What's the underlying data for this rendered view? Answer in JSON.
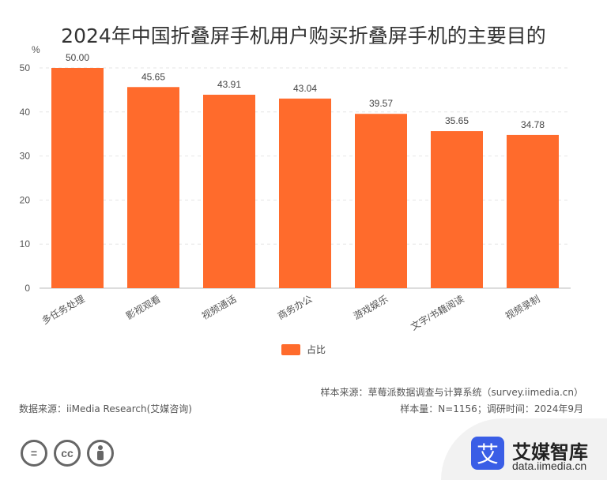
{
  "title": "2024年中国折叠屏手机用户购买折叠屏手机的主要目的",
  "chart_data": {
    "type": "bar",
    "title": "2024年中国折叠屏手机用户购买折叠屏手机的主要目的",
    "ylabel": "%",
    "categories": [
      "多任务处理",
      "影视观看",
      "视频通话",
      "商务办公",
      "游戏娱乐",
      "文字/书籍阅读",
      "视频录制"
    ],
    "series": [
      {
        "name": "占比",
        "values": [
          50.0,
          45.65,
          43.91,
          43.04,
          39.57,
          35.65,
          34.78
        ]
      }
    ],
    "value_labels": [
      "50.00",
      "45.65",
      "43.91",
      "43.04",
      "39.57",
      "35.65",
      "34.78"
    ],
    "ylim": [
      0,
      50
    ],
    "yticks": [
      0,
      10,
      20,
      30,
      40,
      50
    ],
    "grid": true,
    "legend_position": "bottom",
    "bar_color": "#ff6b2c"
  },
  "legend": {
    "label": "占比"
  },
  "footer": {
    "source_left": "数据来源：iiMedia Research(艾媒咨询)",
    "source_right_1": "样本来源：草莓派数据调查与计算系统（survey.iimedia.cn）",
    "source_right_2": "样本量：N=1156；调研时间：2024年9月"
  },
  "brand": {
    "name": "艾媒智库",
    "url": "data.iimedia.cn",
    "logo_char": "艾"
  },
  "license_icons": [
    "equals-icon",
    "cc-icon",
    "person-icon"
  ],
  "cc_text": "cc"
}
